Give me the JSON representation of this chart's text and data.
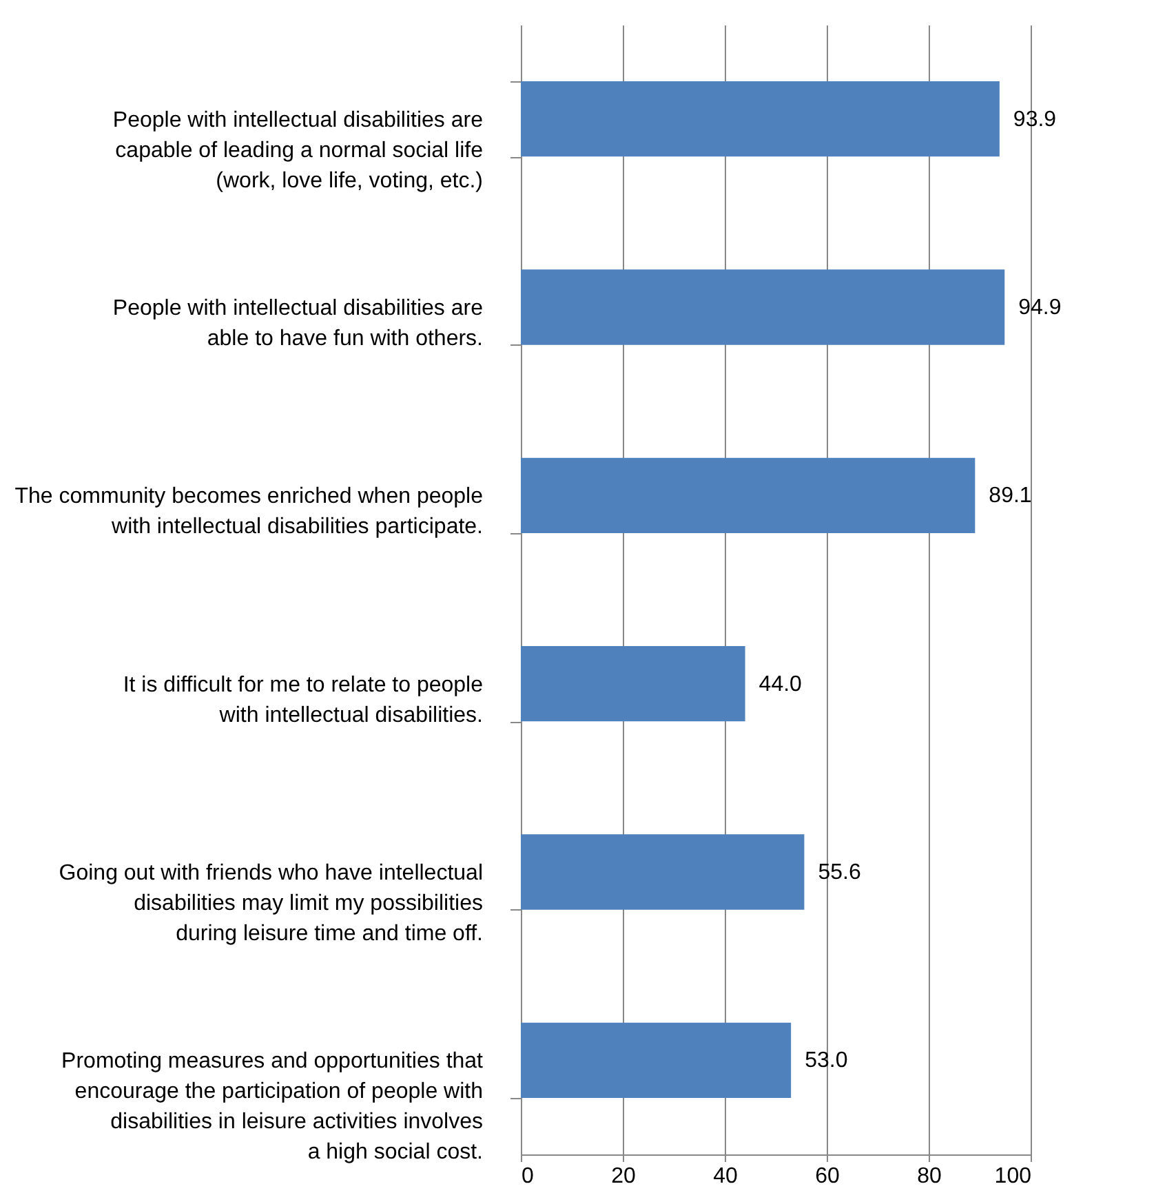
{
  "chart_data": {
    "type": "bar",
    "orientation": "horizontal",
    "categories": [
      "People with intellectual disabilities are capable of leading a normal social life (work, love life, voting, etc.)",
      "People with intellectual disabilities are able to have fun with others.",
      "The community becomes enriched when people with intellectual disabilities participate.",
      "It is difficult for me to relate to people with intellectual disabilities.",
      "Going out with friends who have intellectual disabilities may limit my possibilities during leisure time and time off.",
      "Promoting measures and opportunities that encourage the participation of people with disabilities in leisure activities involves a high social cost."
    ],
    "values": [
      93.9,
      94.9,
      89.1,
      44.0,
      55.6,
      53.0
    ],
    "value_labels": [
      "93.9",
      "94.9",
      "89.1",
      "44.0",
      "55.6",
      "53.0"
    ],
    "color": "#4f81bd",
    "xlim": [
      0,
      100
    ],
    "xticks": [
      0,
      20,
      40,
      60,
      80,
      100
    ],
    "grid": "x"
  }
}
